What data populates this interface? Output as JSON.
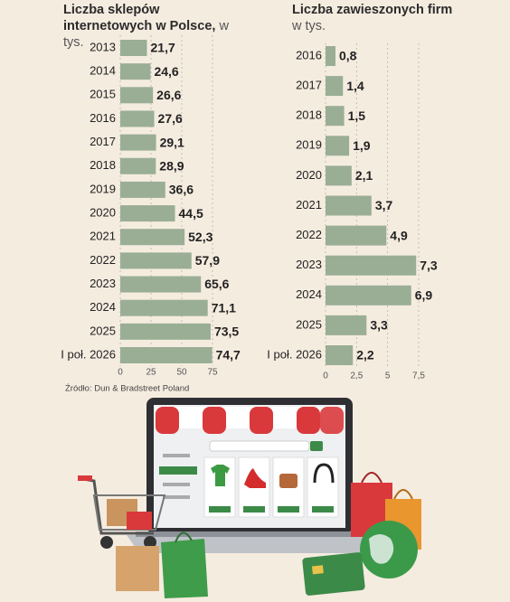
{
  "chart_data": [
    {
      "type": "bar",
      "orientation": "horizontal",
      "title": "Liczba sklepów internetowych w Polsce,",
      "subtitle": "w tys.",
      "categories": [
        "2013",
        "2014",
        "2015",
        "2016",
        "2017",
        "2018",
        "2019",
        "2020",
        "2021",
        "2022",
        "2023",
        "2024",
        "2025",
        "I poł. 2026"
      ],
      "values": [
        21.7,
        24.6,
        26.6,
        27.6,
        29.1,
        28.9,
        36.6,
        44.5,
        52.3,
        57.9,
        65.6,
        71.1,
        73.5,
        74.7
      ],
      "value_labels": [
        "21,7",
        "24,6",
        "26,6",
        "27,6",
        "29,1",
        "28,9",
        "36,6",
        "44,5",
        "52,3",
        "57,9",
        "65,6",
        "71,1",
        "73,5",
        "74,7"
      ],
      "color": "#9aae95",
      "xlim": [
        0,
        75
      ],
      "xticks": [
        0,
        25,
        50,
        75
      ],
      "grid": true
    },
    {
      "type": "bar",
      "orientation": "horizontal",
      "title": "Liczba zawieszonych firm",
      "subtitle": "w tys.",
      "categories": [
        "2016",
        "2017",
        "2018",
        "2019",
        "2020",
        "2021",
        "2022",
        "2023",
        "2024",
        "2025",
        "I poł. 2026"
      ],
      "values": [
        0.8,
        1.4,
        1.5,
        1.9,
        2.1,
        3.7,
        4.9,
        7.3,
        6.9,
        3.3,
        2.2
      ],
      "value_labels": [
        "0,8",
        "1,4",
        "1,5",
        "1,9",
        "2,1",
        "3,7",
        "4,9",
        "7,3",
        "6,9",
        "3,3",
        "2,2"
      ],
      "color": "#9aae95",
      "xlim": [
        0,
        7.5
      ],
      "xticks": [
        0,
        {
          "value": 2.5,
          "label": "2,5"
        },
        5,
        {
          "value": 7.5,
          "label": "7,5"
        }
      ],
      "grid": true
    }
  ],
  "source": "Źródło: Dun & Bradstreet Poland"
}
